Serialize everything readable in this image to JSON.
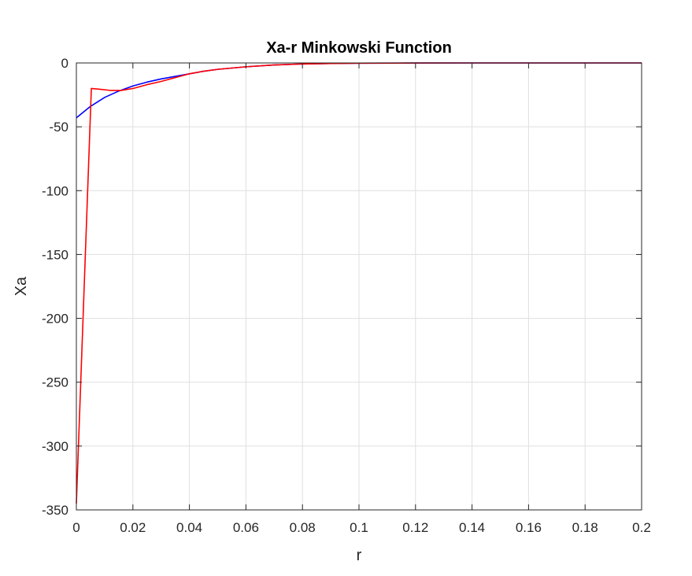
{
  "chart_data": {
    "type": "line",
    "title": "Xa-r Minkowski Function",
    "xlabel": "r",
    "ylabel": "Xa",
    "xlim": [
      0,
      0.2
    ],
    "ylim": [
      -350,
      0
    ],
    "xticks": [
      0,
      0.02,
      0.04,
      0.06,
      0.08,
      0.1,
      0.12,
      0.14,
      0.16,
      0.18,
      0.2
    ],
    "xtick_labels": [
      "0",
      "0.02",
      "0.04",
      "0.06",
      "0.08",
      "0.1",
      "0.12",
      "0.14",
      "0.16",
      "0.18",
      "0.2"
    ],
    "yticks": [
      0,
      -50,
      -100,
      -150,
      -200,
      -250,
      -300,
      -350
    ],
    "ytick_labels": [
      "0",
      "-50",
      "-100",
      "-150",
      "-200",
      "-250",
      "-300",
      "-350"
    ],
    "grid": true,
    "series": [
      {
        "color": "#0000ff",
        "x": [
          0,
          0.005,
          0.01,
          0.015,
          0.02,
          0.025,
          0.03,
          0.035,
          0.04,
          0.045,
          0.05,
          0.06,
          0.07,
          0.08,
          0.09,
          0.1,
          0.12,
          0.14,
          0.16,
          0.18,
          0.2
        ],
        "y": [
          -43,
          -34,
          -27,
          -22,
          -18,
          -15,
          -12.5,
          -10.5,
          -8.5,
          -6.5,
          -5,
          -3,
          -1.6,
          -0.8,
          -0.4,
          -0.2,
          -0.05,
          0,
          0,
          0,
          0
        ]
      },
      {
        "color": "#ff0000",
        "x": [
          0,
          0.0053,
          0.008,
          0.012,
          0.016,
          0.02,
          0.025,
          0.03,
          0.035,
          0.04,
          0.045,
          0.05,
          0.06,
          0.07,
          0.08,
          0.09,
          0.1,
          0.12,
          0.14,
          0.16,
          0.18,
          0.2
        ],
        "y": [
          -345,
          -20,
          -20.5,
          -21.5,
          -21.5,
          -20,
          -17,
          -14.5,
          -11.5,
          -8.5,
          -6.5,
          -5,
          -3,
          -1.6,
          -0.8,
          -0.4,
          -0.2,
          -0.05,
          0,
          0,
          0,
          0
        ]
      }
    ]
  }
}
